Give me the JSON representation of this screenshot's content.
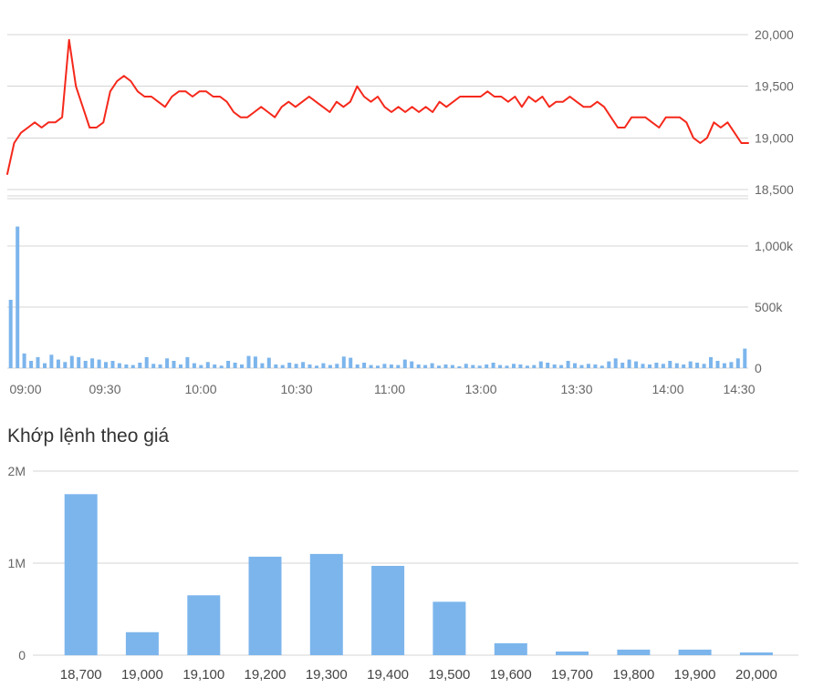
{
  "colors": {
    "grid": "#d4d4d4",
    "axis_text": "#666666",
    "title_text": "#333333",
    "background": "#ffffff"
  },
  "chart_data": [
    {
      "id": "intraday_price",
      "type": "line",
      "series_name": "Price",
      "line_color": "#f5281b",
      "ylim": [
        18400,
        20050
      ],
      "yticks": [
        {
          "value": 20000,
          "label": "20,000"
        },
        {
          "value": 19500,
          "label": "19,500"
        },
        {
          "value": 19000,
          "label": "19,000"
        },
        {
          "value": 18500,
          "label": "18,500"
        }
      ],
      "x_tick_labels": [
        "09:00",
        "09:30",
        "10:00",
        "10:30",
        "11:00",
        "13:00",
        "13:30",
        "14:00",
        "14:30"
      ],
      "values": [
        18650,
        18950,
        19050,
        19100,
        19150,
        19100,
        19150,
        19150,
        19200,
        19950,
        19500,
        19300,
        19100,
        19100,
        19150,
        19450,
        19550,
        19600,
        19550,
        19450,
        19400,
        19400,
        19350,
        19300,
        19400,
        19450,
        19450,
        19400,
        19450,
        19450,
        19400,
        19400,
        19350,
        19250,
        19200,
        19200,
        19250,
        19300,
        19250,
        19200,
        19300,
        19350,
        19300,
        19350,
        19400,
        19350,
        19300,
        19250,
        19350,
        19300,
        19350,
        19500,
        19400,
        19350,
        19400,
        19300,
        19250,
        19300,
        19250,
        19300,
        19250,
        19300,
        19250,
        19350,
        19300,
        19350,
        19400,
        19400,
        19400,
        19400,
        19450,
        19400,
        19400,
        19350,
        19400,
        19300,
        19400,
        19350,
        19400,
        19300,
        19350,
        19350,
        19400,
        19350,
        19300,
        19300,
        19350,
        19300,
        19200,
        19100,
        19100,
        19200,
        19200,
        19200,
        19150,
        19100,
        19200,
        19200,
        19200,
        19150,
        19000,
        18950,
        19000,
        19150,
        19100,
        19150,
        19050,
        18950,
        18950
      ]
    },
    {
      "id": "intraday_volume",
      "type": "bar",
      "bar_color": "#7cb5ec",
      "ylim": [
        0,
        1250000
      ],
      "yticks": [
        {
          "value": 1000000,
          "label": "1,000k"
        },
        {
          "value": 500000,
          "label": "500k"
        },
        {
          "value": 0,
          "label": "0"
        }
      ],
      "values": [
        560000,
        1160000,
        120000,
        60000,
        90000,
        40000,
        110000,
        70000,
        50000,
        100000,
        90000,
        60000,
        80000,
        70000,
        50000,
        60000,
        40000,
        30000,
        25000,
        45000,
        90000,
        35000,
        30000,
        80000,
        60000,
        30000,
        90000,
        40000,
        25000,
        50000,
        30000,
        20000,
        60000,
        45000,
        30000,
        100000,
        95000,
        40000,
        85000,
        30000,
        25000,
        45000,
        35000,
        50000,
        30000,
        20000,
        40000,
        25000,
        35000,
        95000,
        85000,
        30000,
        45000,
        25000,
        20000,
        35000,
        30000,
        25000,
        70000,
        55000,
        30000,
        25000,
        40000,
        20000,
        30000,
        25000,
        15000,
        35000,
        25000,
        20000,
        30000,
        45000,
        25000,
        20000,
        35000,
        30000,
        20000,
        25000,
        55000,
        45000,
        30000,
        25000,
        60000,
        40000,
        25000,
        35000,
        30000,
        20000,
        55000,
        80000,
        45000,
        70000,
        55000,
        35000,
        30000,
        45000,
        35000,
        60000,
        40000,
        30000,
        55000,
        45000,
        35000,
        90000,
        60000,
        40000,
        50000,
        80000,
        160000
      ]
    },
    {
      "id": "volume_by_price",
      "type": "bar",
      "title": "Khớp lệnh theo giá",
      "bar_color": "#7cb5ec",
      "categories": [
        "18,700",
        "19,000",
        "19,100",
        "19,200",
        "19,300",
        "19,400",
        "19,500",
        "19,600",
        "19,700",
        "19,800",
        "19,900",
        "20,000"
      ],
      "values": [
        1750000,
        250000,
        650000,
        1070000,
        1100000,
        970000,
        580000,
        130000,
        40000,
        60000,
        60000,
        30000
      ],
      "ylim": [
        0,
        2000000
      ],
      "yticks": [
        {
          "value": 2000000,
          "label": "2M"
        },
        {
          "value": 1000000,
          "label": "1M"
        },
        {
          "value": 0,
          "label": "0"
        }
      ]
    }
  ]
}
